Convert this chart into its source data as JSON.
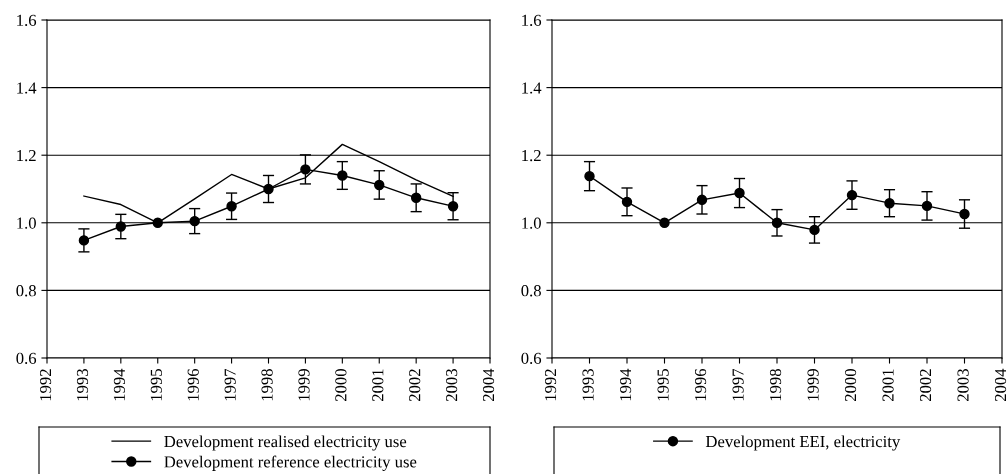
{
  "chart_data": [
    {
      "type": "line",
      "x": [
        1993,
        1994,
        1995,
        1996,
        1997,
        1998,
        1999,
        2000,
        2001,
        2002,
        2003
      ],
      "xlim": [
        1992,
        2004
      ],
      "xticks": [
        1992,
        1993,
        1994,
        1995,
        1996,
        1997,
        1998,
        1999,
        2000,
        2001,
        2002,
        2003,
        2004
      ],
      "ylim": [
        0.6,
        1.6
      ],
      "yticks": [
        {
          "value": 0.6,
          "label": "0.6"
        },
        {
          "value": 0.8,
          "label": "0.8"
        },
        {
          "value": 1.0,
          "label": "1.0"
        },
        {
          "value": 1.2,
          "label": "1.2"
        },
        {
          "value": 1.4,
          "label": "1.4"
        },
        {
          "value": 1.6,
          "label": "1.6"
        }
      ],
      "grid": "y",
      "legend": "bottom",
      "series": [
        {
          "name": "Development realised electricity use",
          "color": "#000000",
          "marker": "none",
          "values": [
            1.079,
            1.054,
            1.0,
            1.071,
            1.143,
            1.1,
            1.133,
            1.232,
            1.181,
            1.127,
            1.078
          ]
        },
        {
          "name": "Development reference electricity use",
          "color": "#000000",
          "marker": "circle",
          "values": [
            0.948,
            0.989,
            1.0,
            1.005,
            1.049,
            1.1,
            1.158,
            1.14,
            1.112,
            1.074,
            1.049
          ],
          "errors": [
            0.034,
            0.036,
            null,
            0.037,
            0.039,
            0.04,
            0.043,
            0.041,
            0.042,
            0.041,
            0.04
          ]
        }
      ]
    },
    {
      "type": "line",
      "x": [
        1993,
        1994,
        1995,
        1996,
        1997,
        1998,
        1999,
        2000,
        2001,
        2002,
        2003
      ],
      "xlim": [
        1992,
        2004
      ],
      "xticks": [
        1992,
        1993,
        1994,
        1995,
        1996,
        1997,
        1998,
        1999,
        2000,
        2001,
        2002,
        2003,
        2004
      ],
      "ylim": [
        0.6,
        1.6
      ],
      "yticks": [
        {
          "value": 0.6,
          "label": "0.6"
        },
        {
          "value": 0.8,
          "label": "0.8"
        },
        {
          "value": 1.0,
          "label": "1.0"
        },
        {
          "value": 1.2,
          "label": "1.2"
        },
        {
          "value": 1.4,
          "label": "1.4"
        },
        {
          "value": 1.6,
          "label": "1.6"
        }
      ],
      "grid": "y",
      "legend": "bottom",
      "series": [
        {
          "name": "Development EEI, electricity",
          "color": "#000000",
          "marker": "circle",
          "values": [
            1.138,
            1.062,
            1.0,
            1.068,
            1.088,
            1.0,
            0.979,
            1.082,
            1.058,
            1.05,
            1.026
          ],
          "errors": [
            0.043,
            0.041,
            null,
            0.042,
            0.043,
            0.039,
            0.039,
            0.042,
            0.04,
            0.042,
            0.042
          ]
        }
      ]
    }
  ]
}
